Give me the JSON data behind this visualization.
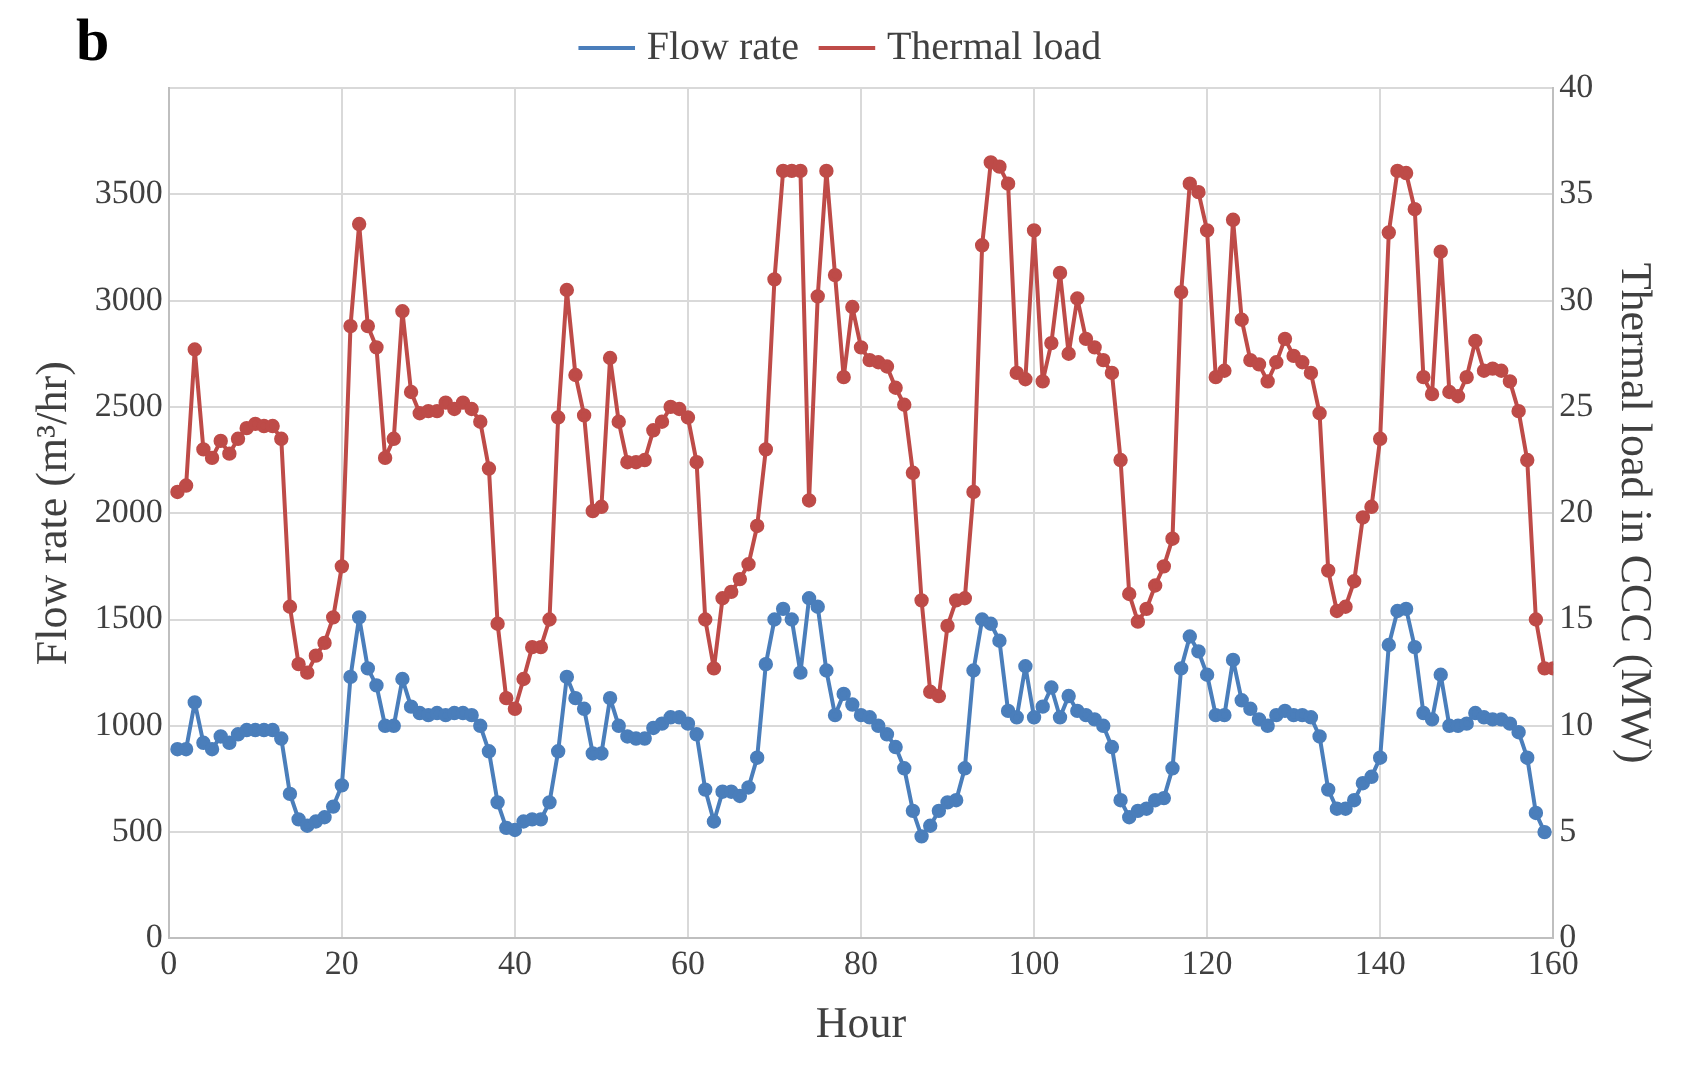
{
  "chart_data": {
    "type": "line",
    "title": "b",
    "xlabel": "Hour",
    "ylabel": "Flow rate (m³/hr)",
    "y2label": "Thermal load in CCC (MW)",
    "xlim": [
      0,
      160
    ],
    "xticks": [
      0,
      20,
      40,
      60,
      80,
      100,
      120,
      140,
      160
    ],
    "ylim": [
      0,
      4000
    ],
    "yticks": [
      0,
      500,
      1000,
      1500,
      2000,
      2500,
      3000,
      3500,
      {
        "value": 4000,
        "label": null
      }
    ],
    "y2lim": [
      0,
      40
    ],
    "y2ticks": [
      0,
      5,
      10,
      15,
      20,
      25,
      30,
      35,
      40
    ],
    "grid": true,
    "legend": "top",
    "marker": "circle",
    "line_style": "solid",
    "series": [
      {
        "name": "Flow rate",
        "color": "#4a7ebb",
        "x": [
          1,
          2,
          3,
          4,
          5,
          6,
          7,
          8,
          9,
          10,
          11,
          12,
          13,
          14,
          15,
          16,
          17,
          18,
          19,
          20,
          21,
          22,
          23,
          24,
          25,
          26,
          27,
          28,
          29,
          30,
          31,
          32,
          33,
          34,
          35,
          36,
          37,
          38,
          39,
          40,
          41,
          42,
          43,
          44,
          45,
          46,
          47,
          48,
          49,
          50,
          51,
          52,
          53,
          54,
          55,
          56,
          57,
          58,
          59,
          60,
          61,
          62,
          63,
          64,
          65,
          66,
          67,
          68,
          69,
          70,
          71,
          72,
          73,
          74,
          75,
          76,
          77,
          78,
          79,
          80,
          81,
          82,
          83,
          84,
          85,
          86,
          87,
          88,
          89,
          90,
          91,
          92,
          93,
          94,
          95,
          96,
          97,
          98,
          99,
          100,
          101,
          102,
          103,
          104,
          105,
          106,
          107,
          108,
          109,
          110,
          111,
          112,
          113,
          114,
          115,
          116,
          117,
          118,
          119,
          120,
          121,
          122,
          123,
          124,
          125,
          126,
          127,
          128,
          129,
          130,
          131,
          132,
          133,
          134,
          135,
          136,
          137,
          138,
          139,
          140,
          141,
          142,
          143,
          144,
          145,
          146,
          147,
          148,
          149,
          150,
          151,
          152,
          153,
          154,
          155,
          156,
          157,
          158,
          159
        ],
        "values": [
          890,
          890,
          1110,
          920,
          890,
          950,
          920,
          960,
          980,
          980,
          980,
          980,
          940,
          680,
          560,
          530,
          550,
          570,
          620,
          720,
          1230,
          1510,
          1270,
          1190,
          1000,
          1000,
          1220,
          1090,
          1060,
          1050,
          1060,
          1050,
          1060,
          1060,
          1050,
          1000,
          880,
          640,
          520,
          510,
          550,
          560,
          560,
          640,
          880,
          1230,
          1130,
          1080,
          870,
          870,
          1130,
          1000,
          950,
          940,
          940,
          990,
          1010,
          1040,
          1040,
          1010,
          960,
          700,
          550,
          690,
          690,
          670,
          710,
          850,
          1290,
          1500,
          1550,
          1500,
          1250,
          1600,
          1560,
          1260,
          1050,
          1150,
          1100,
          1050,
          1040,
          1000,
          960,
          900,
          800,
          600,
          480,
          530,
          600,
          640,
          650,
          800,
          1260,
          1500,
          1480,
          1400,
          1070,
          1040,
          1280,
          1040,
          1090,
          1180,
          1040,
          1140,
          1070,
          1050,
          1030,
          1000,
          900,
          650,
          570,
          600,
          610,
          650,
          660,
          800,
          1270,
          1420,
          1350,
          1240,
          1050,
          1050,
          1310,
          1120,
          1080,
          1030,
          1000,
          1050,
          1070,
          1050,
          1050,
          1040,
          950,
          700,
          610,
          610,
          650,
          730,
          760,
          850,
          1380,
          1540,
          1550,
          1370,
          1060,
          1030,
          1240,
          1000,
          1000,
          1010,
          1060,
          1040,
          1030,
          1030,
          1010,
          970,
          850,
          590,
          500
        ]
      },
      {
        "name": "Thermal load",
        "color": "#be4b48",
        "axis": "y2",
        "x": [
          1,
          2,
          3,
          4,
          5,
          6,
          7,
          8,
          9,
          10,
          11,
          12,
          13,
          14,
          15,
          16,
          17,
          18,
          19,
          20,
          21,
          22,
          23,
          24,
          25,
          26,
          27,
          28,
          29,
          30,
          31,
          32,
          33,
          34,
          35,
          36,
          37,
          38,
          39,
          40,
          41,
          42,
          43,
          44,
          45,
          46,
          47,
          48,
          49,
          50,
          51,
          52,
          53,
          54,
          55,
          56,
          57,
          58,
          59,
          60,
          61,
          62,
          63,
          64,
          65,
          66,
          67,
          68,
          69,
          70,
          71,
          72,
          73,
          74,
          75,
          76,
          77,
          78,
          79,
          80,
          81,
          82,
          83,
          84,
          85,
          86,
          87,
          88,
          89,
          90,
          91,
          92,
          93,
          94,
          95,
          96,
          97,
          98,
          99,
          100,
          101,
          102,
          103,
          104,
          105,
          106,
          107,
          108,
          109,
          110,
          111,
          112,
          113,
          114,
          115,
          116,
          117,
          118,
          119,
          120,
          121,
          122,
          123,
          124,
          125,
          126,
          127,
          128,
          129,
          130,
          131,
          132,
          133,
          134,
          135,
          136,
          137,
          138,
          139,
          140,
          141,
          142,
          143,
          144,
          145,
          146,
          147,
          148,
          149,
          150,
          151,
          152,
          153,
          154,
          155,
          156,
          157,
          158,
          159,
          160
        ],
        "values": [
          21,
          21.3,
          27.7,
          23,
          22.6,
          23.4,
          22.8,
          23.5,
          24,
          24.2,
          24.1,
          24.1,
          23.5,
          15.6,
          12.9,
          12.5,
          13.3,
          13.9,
          15.1,
          17.5,
          28.8,
          33.6,
          28.8,
          27.8,
          22.6,
          23.5,
          29.5,
          25.7,
          24.7,
          24.8,
          24.8,
          25.2,
          24.9,
          25.2,
          24.9,
          24.3,
          22.1,
          14.8,
          11.3,
          10.8,
          12.2,
          13.7,
          13.7,
          15,
          24.5,
          30.5,
          26.5,
          24.6,
          20.1,
          20.3,
          27.3,
          24.3,
          22.4,
          22.4,
          22.5,
          23.9,
          24.3,
          25,
          24.9,
          24.5,
          22.4,
          15,
          12.7,
          16,
          16.3,
          16.9,
          17.6,
          19.4,
          23,
          31,
          36.1,
          36.1,
          36.1,
          20.6,
          30.2,
          36.1,
          31.2,
          26.4,
          29.7,
          27.8,
          27.2,
          27.1,
          26.9,
          25.9,
          25.1,
          21.9,
          15.9,
          11.6,
          11.4,
          14.7,
          15.9,
          16,
          21,
          32.6,
          36.5,
          36.3,
          35.5,
          26.6,
          26.3,
          33.3,
          26.2,
          28,
          31.3,
          27.5,
          30.1,
          28.2,
          27.8,
          27.2,
          26.6,
          22.5,
          16.2,
          14.9,
          15.5,
          16.6,
          17.5,
          18.8,
          30.4,
          35.5,
          35.1,
          33.3,
          26.4,
          26.7,
          33.8,
          29.1,
          27.2,
          27,
          26.2,
          27.1,
          28.2,
          27.4,
          27.1,
          26.6,
          24.7,
          17.3,
          15.4,
          15.6,
          16.8,
          19.8,
          20.3,
          23.5,
          33.2,
          36.1,
          36,
          34.3,
          26.4,
          25.6,
          32.3,
          25.7,
          25.5,
          26.4,
          28.1,
          26.7,
          26.8,
          26.7,
          26.2,
          24.8,
          22.5,
          15,
          12.7,
          12.7
        ]
      }
    ]
  }
}
